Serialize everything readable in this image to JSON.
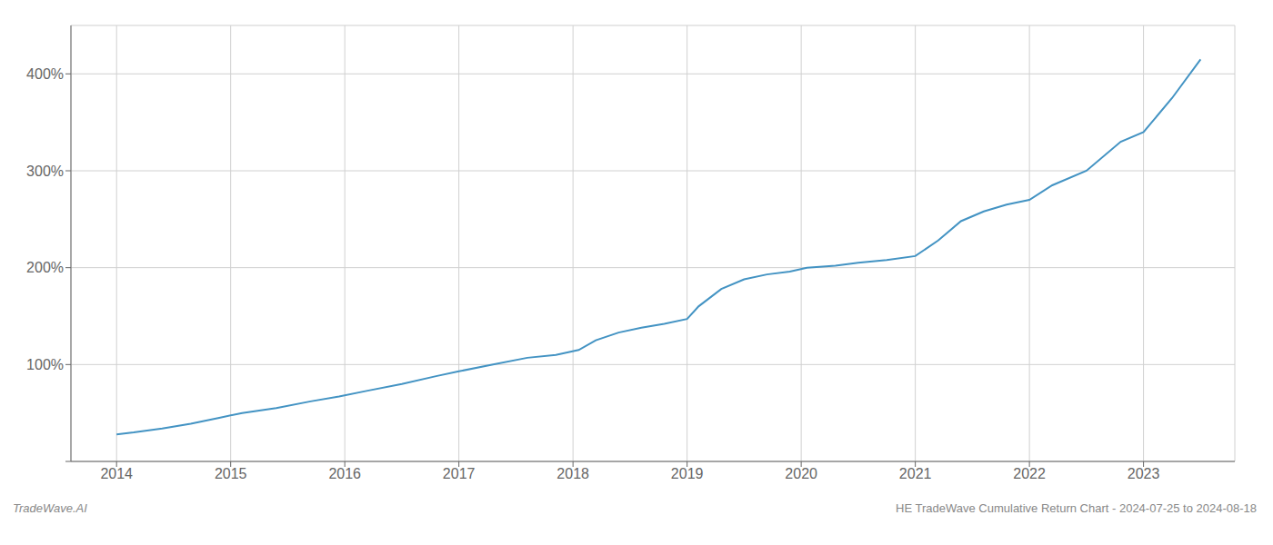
{
  "chart_data": {
    "type": "line",
    "annotations": [
      "TradeWave.AI",
      "HE TradeWave Cumulative Return Chart - 2024-07-25 to 2024-08-18"
    ],
    "x": [
      2014.0,
      2014.15,
      2014.4,
      2014.65,
      2014.9,
      2015.1,
      2015.4,
      2015.7,
      2015.95,
      2016.2,
      2016.5,
      2016.8,
      2017.0,
      2017.3,
      2017.6,
      2017.85,
      2018.05,
      2018.2,
      2018.4,
      2018.6,
      2018.8,
      2019.0,
      2019.1,
      2019.3,
      2019.5,
      2019.7,
      2019.9,
      2020.05,
      2020.3,
      2020.5,
      2020.75,
      2021.0,
      2021.2,
      2021.4,
      2021.6,
      2021.8,
      2022.0,
      2022.2,
      2022.5,
      2022.8,
      2023.0,
      2023.25,
      2023.5
    ],
    "values": [
      28,
      30,
      34,
      39,
      45,
      50,
      55,
      62,
      67,
      73,
      80,
      88,
      93,
      100,
      107,
      110,
      115,
      125,
      133,
      138,
      142,
      147,
      160,
      178,
      188,
      193,
      196,
      200,
      202,
      205,
      208,
      212,
      228,
      248,
      258,
      265,
      270,
      285,
      300,
      330,
      340,
      375,
      415
    ],
    "color": "#4393c3",
    "xlim": [
      2013.6,
      2023.8
    ],
    "ylim": [
      0,
      450
    ],
    "xticks": [
      2014,
      2015,
      2016,
      2017,
      2018,
      2019,
      2020,
      2021,
      2022,
      2023
    ],
    "yticks": [
      {
        "value": 0,
        "label": ""
      },
      {
        "value": 100,
        "label": "100%"
      },
      {
        "value": 200,
        "label": "200%"
      },
      {
        "value": 300,
        "label": "300%"
      },
      {
        "value": 400,
        "label": "400%"
      }
    ],
    "grid": true
  }
}
